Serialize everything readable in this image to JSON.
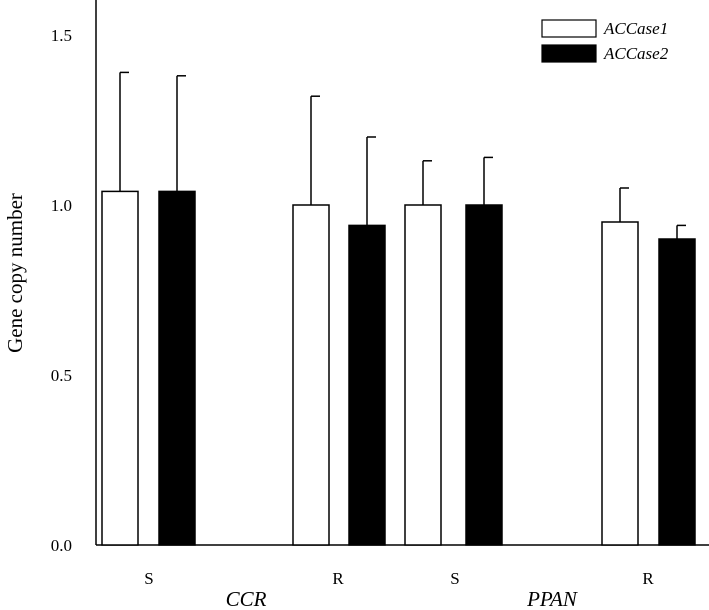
{
  "chart_data": {
    "type": "bar",
    "title": "",
    "xlabel": "",
    "ylabel": "Gene copy number",
    "ylim": [
      0,
      1.6
    ],
    "yticks": [
      0.0,
      0.5,
      1.0,
      1.5
    ],
    "ytick_labels": [
      "0.0",
      "0.5",
      "1.0",
      "1.5"
    ],
    "grid": false,
    "legend_position": "top-right",
    "categories": [
      "S",
      "R",
      "S",
      "R"
    ],
    "groups": [
      {
        "label": "CCR",
        "category_indices": [
          0,
          1
        ]
      },
      {
        "label": "PPAN",
        "category_indices": [
          2,
          3
        ]
      }
    ],
    "series": [
      {
        "name": "ACCase1",
        "fill": "#ffffff",
        "values": [
          1.04,
          1.0,
          1.0,
          0.95
        ],
        "errors": [
          0.35,
          0.32,
          0.13,
          0.1
        ]
      },
      {
        "name": "ACCase2",
        "fill": "#000000",
        "values": [
          1.04,
          0.94,
          1.0,
          0.9
        ],
        "errors": [
          0.34,
          0.26,
          0.14,
          0.04
        ]
      }
    ]
  }
}
